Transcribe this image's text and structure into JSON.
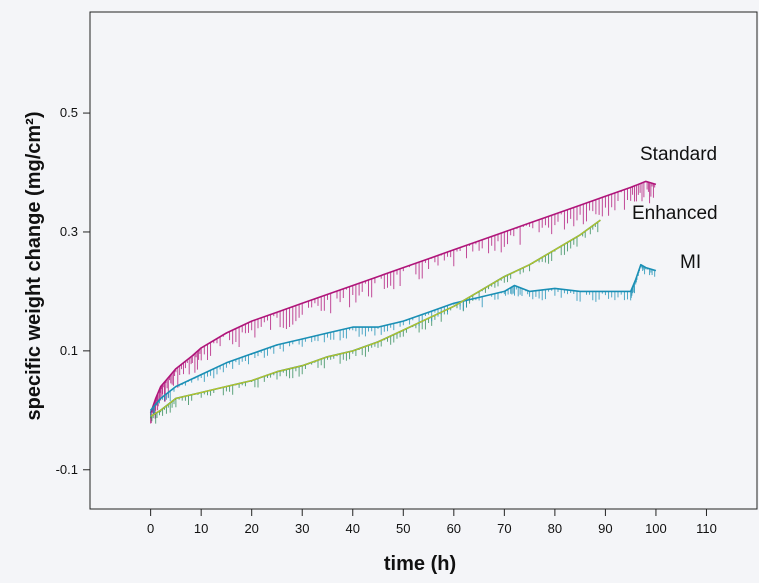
{
  "chart_data": {
    "type": "line",
    "title": "",
    "xlabel": "time (h)",
    "ylabel": "specific weight change (mg/cm²)",
    "xlim": [
      -12,
      120
    ],
    "ylim": [
      -0.166,
      0.67
    ],
    "x_ticks": [
      "0",
      "10",
      "20",
      "30",
      "40",
      "50",
      "60",
      "70",
      "80",
      "90",
      "100",
      "110"
    ],
    "y_ticks": [
      "-0.1",
      "0.1",
      "0.3",
      "0.5"
    ],
    "grid": false,
    "legend": "inline labels at line ends",
    "series": [
      {
        "name": "Standard",
        "color": "#b0157a",
        "x": [
          0,
          1,
          2,
          3,
          5,
          8,
          10,
          15,
          20,
          25,
          30,
          35,
          40,
          45,
          50,
          55,
          60,
          65,
          70,
          75,
          80,
          85,
          90,
          95,
          98,
          100
        ],
        "values": [
          -0.005,
          0.02,
          0.04,
          0.05,
          0.07,
          0.09,
          0.105,
          0.13,
          0.15,
          0.165,
          0.18,
          0.195,
          0.21,
          0.225,
          0.24,
          0.255,
          0.27,
          0.285,
          0.3,
          0.315,
          0.33,
          0.345,
          0.36,
          0.375,
          0.385,
          0.38
        ]
      },
      {
        "name": "Enhanced",
        "color": "#2e8b57",
        "x": [
          0,
          2,
          5,
          10,
          15,
          20,
          25,
          30,
          35,
          40,
          45,
          50,
          55,
          60,
          65,
          70,
          75,
          80,
          85,
          89
        ],
        "values": [
          -0.01,
          0.0,
          0.02,
          0.03,
          0.04,
          0.05,
          0.065,
          0.075,
          0.09,
          0.1,
          0.115,
          0.135,
          0.155,
          0.175,
          0.2,
          0.225,
          0.245,
          0.27,
          0.295,
          0.32
        ]
      },
      {
        "name": "MI",
        "color": "#1a8fb5",
        "x": [
          0,
          2,
          5,
          10,
          15,
          20,
          25,
          30,
          35,
          40,
          45,
          50,
          55,
          60,
          65,
          70,
          72,
          75,
          80,
          85,
          90,
          95,
          96,
          97,
          98,
          100
        ],
        "values": [
          0.0,
          0.02,
          0.04,
          0.06,
          0.08,
          0.095,
          0.11,
          0.12,
          0.13,
          0.14,
          0.14,
          0.15,
          0.165,
          0.18,
          0.19,
          0.2,
          0.21,
          0.2,
          0.205,
          0.2,
          0.2,
          0.2,
          0.22,
          0.245,
          0.24,
          0.235
        ]
      }
    ]
  }
}
